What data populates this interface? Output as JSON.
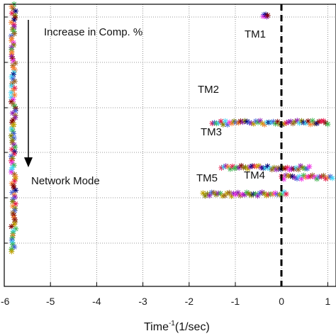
{
  "chart_data": {
    "type": "scatter",
    "title": "",
    "xlabel": {
      "base": "Time",
      "sup": "-1",
      "rest": "(1/sec)"
    },
    "ylabel": "",
    "xlim": [
      -6,
      1.1
    ],
    "x_ticks": [
      -6,
      -5,
      -4,
      -3,
      -2,
      -1,
      0,
      1
    ],
    "x_tick_labels": [
      "-6",
      "-5",
      "-4",
      "-3",
      "-2",
      "-1",
      "0",
      "1"
    ],
    "grid": true,
    "reference_line_x": 0,
    "marker_colors": [
      "#e6194b",
      "#3cb44b",
      "#4363d8",
      "#f58231",
      "#911eb4",
      "#42d4f4",
      "#f032e6",
      "#bfa000",
      "#9A6324",
      "#800000",
      "#000075",
      "#808000"
    ],
    "groups": [
      {
        "name": "TM1",
        "x_range": [
          -0.4,
          -0.3
        ],
        "row": 1
      },
      {
        "name": "TM2",
        "x_range": [
          -1.5,
          1.0
        ],
        "row": 3
      },
      {
        "name": "TM3",
        "x_range": [
          -1.3,
          0.6
        ],
        "row": 4
      },
      {
        "name": "TM4",
        "x_range": [
          0.0,
          1.1
        ],
        "row": 5
      },
      {
        "name": "TM5",
        "x_range": [
          -1.7,
          0.1
        ],
        "row": 5.5
      },
      {
        "name": "network-column",
        "x_range": [
          -5.85,
          -5.75
        ],
        "rows": [
          0,
          5.8
        ]
      }
    ]
  },
  "annotations": {
    "increase": "Increase in Comp. %",
    "network": "Network Mode",
    "tm1": "TM1",
    "tm2": "TM2",
    "tm3": "TM3",
    "tm4": "TM4",
    "tm5": "TM5"
  }
}
